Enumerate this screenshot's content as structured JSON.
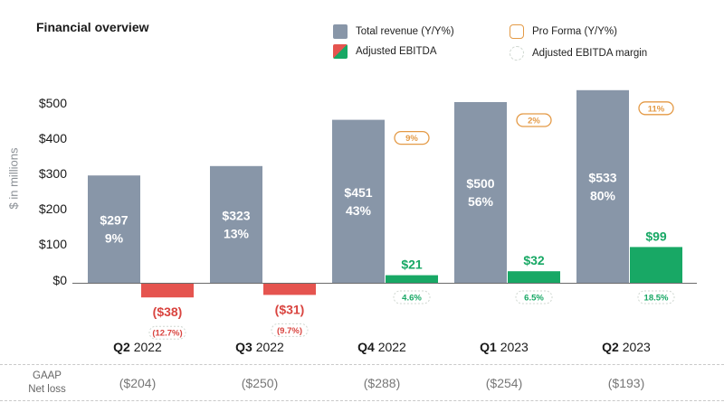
{
  "title": "Financial overview",
  "legend": {
    "revenue": "Total revenue (Y/Y%)",
    "ebitda": "Adjusted EBITDA",
    "pro_forma": "Pro Forma (Y/Y%)",
    "margin": "Adjusted EBITDA margin"
  },
  "colors": {
    "revenue": "#8896a8",
    "ebitda_positive": "#18a865",
    "ebitda_negative": "#e5544f",
    "pro_forma": "#e49a46",
    "negative_text": "#d9443f"
  },
  "gaap": {
    "label_line1": "GAAP",
    "label_line2": "Net loss",
    "values": [
      "($204)",
      "($250)",
      "($288)",
      "($254)",
      "($193)"
    ]
  },
  "chart_data": {
    "type": "bar",
    "ylabel": "$ in millions",
    "ylim": [
      0,
      500
    ],
    "y_ticks": [
      0,
      100,
      200,
      300,
      400,
      500
    ],
    "y_tick_labels": [
      "$0",
      "$100",
      "$200",
      "$300",
      "$400",
      "$500"
    ],
    "categories": [
      {
        "quarter": "Q2",
        "year": "2022"
      },
      {
        "quarter": "Q3",
        "year": "2022"
      },
      {
        "quarter": "Q4",
        "year": "2022"
      },
      {
        "quarter": "Q1",
        "year": "2023"
      },
      {
        "quarter": "Q2",
        "year": "2023"
      }
    ],
    "series": [
      {
        "name": "Total revenue (Y/Y%)",
        "values": [
          297,
          323,
          451,
          500,
          533
        ],
        "value_labels": [
          "$297",
          "$323",
          "$451",
          "$500",
          "$533"
        ],
        "yoy_labels": [
          "9%",
          "13%",
          "43%",
          "56%",
          "80%"
        ]
      },
      {
        "name": "Adjusted EBITDA",
        "values": [
          -38,
          -31,
          21,
          32,
          99
        ],
        "value_labels": [
          "($38)",
          "($31)",
          "$21",
          "$32",
          "$99"
        ],
        "margin_labels": [
          "(12.7%)",
          "(9.7%)",
          "4.6%",
          "6.5%",
          "18.5%"
        ]
      }
    ],
    "pro_forma_labels": [
      "",
      "",
      "9%",
      "2%",
      "11%"
    ]
  }
}
